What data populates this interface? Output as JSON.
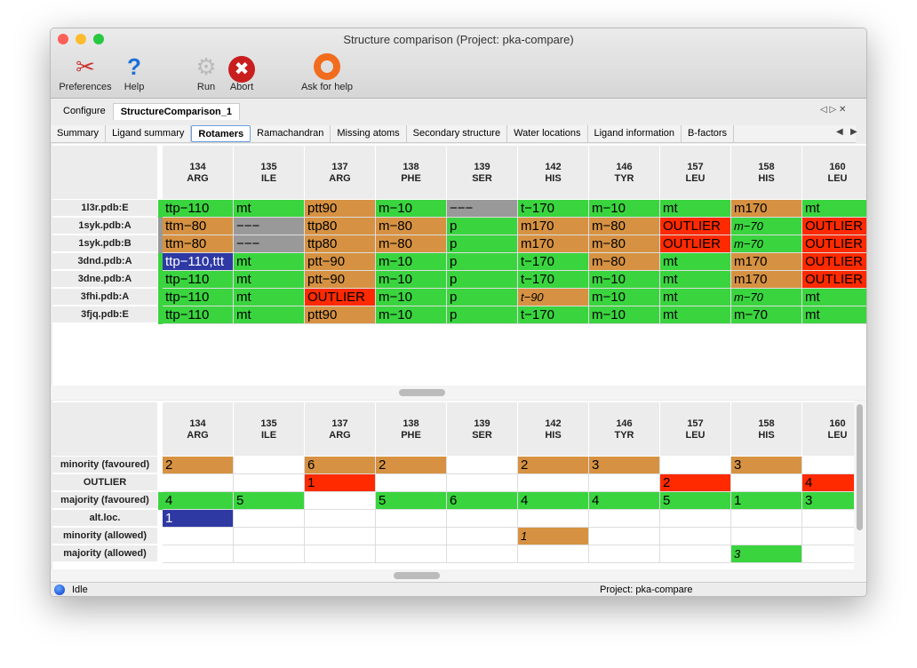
{
  "window": {
    "title": "Structure comparison (Project: pka-compare)"
  },
  "toolbar": [
    {
      "label": "Preferences",
      "icon": "tools-icon"
    },
    {
      "label": "Help",
      "icon": "help-icon"
    },
    {
      "label": "Run",
      "icon": "gear-icon"
    },
    {
      "label": "Abort",
      "icon": "abort-icon"
    },
    {
      "label": "Ask for help",
      "icon": "lifebuoy-icon"
    }
  ],
  "outer_tabs": [
    {
      "label": "Configure"
    },
    {
      "label": "StructureComparison_1",
      "active": true
    }
  ],
  "sub_tabs": [
    {
      "label": "Summary"
    },
    {
      "label": "Ligand summary"
    },
    {
      "label": "Rotamers",
      "active": true
    },
    {
      "label": "Ramachandran"
    },
    {
      "label": "Missing atoms"
    },
    {
      "label": "Secondary structure"
    },
    {
      "label": "Water locations"
    },
    {
      "label": "Ligand information"
    },
    {
      "label": "B-factors"
    }
  ],
  "colors": {
    "g": "#3ad43f",
    "o": "#d69242",
    "r": "#ff2a00",
    "x": "#999999",
    "b": "#2e39a4"
  },
  "columns": [
    {
      "num": "134",
      "res": "ARG"
    },
    {
      "num": "135",
      "res": "ILE"
    },
    {
      "num": "137",
      "res": "ARG"
    },
    {
      "num": "138",
      "res": "PHE"
    },
    {
      "num": "139",
      "res": "SER"
    },
    {
      "num": "142",
      "res": "HIS"
    },
    {
      "num": "146",
      "res": "TYR"
    },
    {
      "num": "157",
      "res": "LEU"
    },
    {
      "num": "158",
      "res": "HIS"
    },
    {
      "num": "160",
      "res": "LEU"
    }
  ],
  "rotamers": {
    "rows": [
      {
        "label": "1l3r.pdb:E",
        "stripe": "g",
        "cells": [
          [
            "ttp−110",
            "g"
          ],
          [
            "mt",
            "g"
          ],
          [
            "ptt90",
            "o"
          ],
          [
            "m−10",
            "g"
          ],
          [
            "−−−",
            "x"
          ],
          [
            "t−170",
            "g"
          ],
          [
            "m−10",
            "g"
          ],
          [
            "mt",
            "g"
          ],
          [
            "m170",
            "o"
          ],
          [
            "mt",
            "g"
          ]
        ]
      },
      {
        "label": "1syk.pdb:A",
        "stripe": "x",
        "cells": [
          [
            "ttm−80",
            "o"
          ],
          [
            "−−−",
            "x"
          ],
          [
            "ttp80",
            "o"
          ],
          [
            "m−80",
            "o"
          ],
          [
            "p",
            "g"
          ],
          [
            "m170",
            "o"
          ],
          [
            "m−80",
            "o"
          ],
          [
            "OUTLIER",
            "r"
          ],
          [
            "m−70",
            "g",
            1
          ],
          [
            "OUTLIER",
            "r"
          ]
        ]
      },
      {
        "label": "1syk.pdb:B",
        "stripe": "x",
        "cells": [
          [
            "ttm−80",
            "o"
          ],
          [
            "−−−",
            "x"
          ],
          [
            "ttp80",
            "o"
          ],
          [
            "m−80",
            "o"
          ],
          [
            "p",
            "g"
          ],
          [
            "m170",
            "o"
          ],
          [
            "m−80",
            "o"
          ],
          [
            "OUTLIER",
            "r"
          ],
          [
            "m−70",
            "g",
            1
          ],
          [
            "OUTLIER",
            "r"
          ]
        ]
      },
      {
        "label": "3dnd.pdb:A",
        "stripe": "g",
        "cells": [
          [
            "ttp−110,ttt",
            "b"
          ],
          [
            "mt",
            "g"
          ],
          [
            "ptt−90",
            "o"
          ],
          [
            "m−10",
            "g"
          ],
          [
            "p",
            "g"
          ],
          [
            "t−170",
            "g"
          ],
          [
            "m−80",
            "o"
          ],
          [
            "mt",
            "g"
          ],
          [
            "m170",
            "o"
          ],
          [
            "OUTLIER",
            "r"
          ]
        ]
      },
      {
        "label": "3dne.pdb:A",
        "stripe": "g",
        "cells": [
          [
            "ttp−110",
            "g"
          ],
          [
            "mt",
            "g"
          ],
          [
            "ptt−90",
            "o"
          ],
          [
            "m−10",
            "g"
          ],
          [
            "p",
            "g"
          ],
          [
            "t−170",
            "g"
          ],
          [
            "m−10",
            "g"
          ],
          [
            "mt",
            "g"
          ],
          [
            "m170",
            "o"
          ],
          [
            "OUTLIER",
            "r"
          ]
        ]
      },
      {
        "label": "3fhi.pdb:A",
        "stripe": "g",
        "cells": [
          [
            "ttp−110",
            "g"
          ],
          [
            "mt",
            "g"
          ],
          [
            "OUTLIER",
            "r"
          ],
          [
            "m−10",
            "g"
          ],
          [
            "p",
            "g"
          ],
          [
            "t−90",
            "o",
            1
          ],
          [
            "m−10",
            "g"
          ],
          [
            "mt",
            "g"
          ],
          [
            "m−70",
            "g",
            1
          ],
          [
            "mt",
            "g"
          ]
        ]
      },
      {
        "label": "3fjq.pdb:E",
        "stripe": "g",
        "cells": [
          [
            "ttp−110",
            "g"
          ],
          [
            "mt",
            "g"
          ],
          [
            "ptt90",
            "o"
          ],
          [
            "m−10",
            "g"
          ],
          [
            "p",
            "g"
          ],
          [
            "t−170",
            "g"
          ],
          [
            "m−10",
            "g"
          ],
          [
            "mt",
            "g"
          ],
          [
            "m−70",
            "g"
          ],
          [
            "mt",
            "g"
          ]
        ]
      }
    ]
  },
  "summary": {
    "rows": [
      {
        "label": "minority (favoured)",
        "cells": [
          [
            "2",
            "o"
          ],
          [
            "",
            ""
          ],
          [
            "6",
            "o"
          ],
          [
            "2",
            "o"
          ],
          [
            "",
            ""
          ],
          [
            "2",
            "o"
          ],
          [
            "3",
            "o"
          ],
          [
            "",
            ""
          ],
          [
            "3",
            "o"
          ],
          [
            "",
            ""
          ]
        ]
      },
      {
        "label": "OUTLIER",
        "cells": [
          [
            "",
            ""
          ],
          [
            "",
            ""
          ],
          [
            "1",
            "r"
          ],
          [
            "",
            ""
          ],
          [
            "",
            ""
          ],
          [
            "",
            ""
          ],
          [
            "",
            ""
          ],
          [
            "2",
            "r"
          ],
          [
            "",
            ""
          ],
          [
            "4",
            "r"
          ]
        ]
      },
      {
        "label": "majority (favoured)",
        "stripe": "g",
        "cells": [
          [
            "4",
            "g"
          ],
          [
            "5",
            "g"
          ],
          [
            "",
            ""
          ],
          [
            "5",
            "g"
          ],
          [
            "6",
            "g"
          ],
          [
            "4",
            "g"
          ],
          [
            "4",
            "g"
          ],
          [
            "5",
            "g"
          ],
          [
            "1",
            "g"
          ],
          [
            "3",
            "g"
          ]
        ]
      },
      {
        "label": "alt.loc.",
        "cells": [
          [
            "1",
            "b"
          ],
          [
            "",
            ""
          ],
          [
            "",
            ""
          ],
          [
            "",
            ""
          ],
          [
            "",
            ""
          ],
          [
            "",
            ""
          ],
          [
            "",
            ""
          ],
          [
            "",
            ""
          ],
          [
            "",
            ""
          ],
          [
            "",
            ""
          ]
        ]
      },
      {
        "label": "minority (allowed)",
        "cells": [
          [
            "",
            ""
          ],
          [
            "",
            ""
          ],
          [
            "",
            ""
          ],
          [
            "",
            ""
          ],
          [
            "",
            ""
          ],
          [
            "1",
            "o",
            1
          ],
          [
            "",
            ""
          ],
          [
            "",
            ""
          ],
          [
            "",
            ""
          ],
          [
            "",
            ""
          ]
        ]
      },
      {
        "label": "majority (allowed)",
        "cells": [
          [
            "",
            ""
          ],
          [
            "",
            ""
          ],
          [
            "",
            ""
          ],
          [
            "",
            ""
          ],
          [
            "",
            ""
          ],
          [
            "",
            ""
          ],
          [
            "",
            ""
          ],
          [
            "",
            ""
          ],
          [
            "3",
            "g",
            1
          ],
          [
            "",
            ""
          ]
        ]
      }
    ]
  },
  "status": {
    "state": "Idle",
    "project": "Project: pka-compare"
  }
}
